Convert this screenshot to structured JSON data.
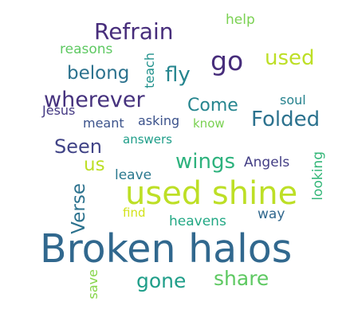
{
  "words": [
    {
      "id": "broken_halos",
      "text": "Broken halos",
      "color": "#31688e"
    },
    {
      "id": "used_shine",
      "text": "used shine",
      "color": "#bddf26"
    },
    {
      "id": "refrain",
      "text": "Refrain",
      "color": "#472d7b"
    },
    {
      "id": "go",
      "text": "go",
      "color": "#472d7b"
    },
    {
      "id": "used",
      "text": "used",
      "color": "#bddf26"
    },
    {
      "id": "wherever",
      "text": "wherever",
      "color": "#46327e"
    },
    {
      "id": "folded",
      "text": "Folded",
      "color": "#2c728e"
    },
    {
      "id": "fly",
      "text": "fly",
      "color": "#25858e"
    },
    {
      "id": "belong",
      "text": "belong",
      "color": "#2c728e"
    },
    {
      "id": "seen",
      "text": "Seen",
      "color": "#414487"
    },
    {
      "id": "wings",
      "text": "wings",
      "color": "#2db27d"
    },
    {
      "id": "come",
      "text": "Come",
      "color": "#25858e"
    },
    {
      "id": "gone",
      "text": "gone",
      "color": "#1f9e89"
    },
    {
      "id": "share",
      "text": "share",
      "color": "#5ec962"
    },
    {
      "id": "us",
      "text": "us",
      "color": "#bddf26"
    },
    {
      "id": "verse",
      "text": "Verse",
      "color": "#2c728e"
    },
    {
      "id": "help",
      "text": "help",
      "color": "#7ad151"
    },
    {
      "id": "reasons",
      "text": "reasons",
      "color": "#5ec962"
    },
    {
      "id": "teach",
      "text": "teach",
      "color": "#21918c"
    },
    {
      "id": "jesus",
      "text": "Jesus",
      "color": "#443983"
    },
    {
      "id": "meant",
      "text": "meant",
      "color": "#3b528b"
    },
    {
      "id": "asking",
      "text": "asking",
      "color": "#3b528b"
    },
    {
      "id": "know",
      "text": "know",
      "color": "#7ad151"
    },
    {
      "id": "soul",
      "text": "soul",
      "color": "#26828e"
    },
    {
      "id": "answers",
      "text": "answers",
      "color": "#1f9e89"
    },
    {
      "id": "leave",
      "text": "leave",
      "color": "#2a788e"
    },
    {
      "id": "angels",
      "text": "Angels",
      "color": "#433e85"
    },
    {
      "id": "looking",
      "text": "looking",
      "color": "#35b779"
    },
    {
      "id": "find",
      "text": "find",
      "color": "#d2e21b"
    },
    {
      "id": "heavens",
      "text": "heavens",
      "color": "#22a884"
    },
    {
      "id": "way",
      "text": "way",
      "color": "#31688e"
    },
    {
      "id": "save",
      "text": "save",
      "color": "#86d549"
    }
  ]
}
